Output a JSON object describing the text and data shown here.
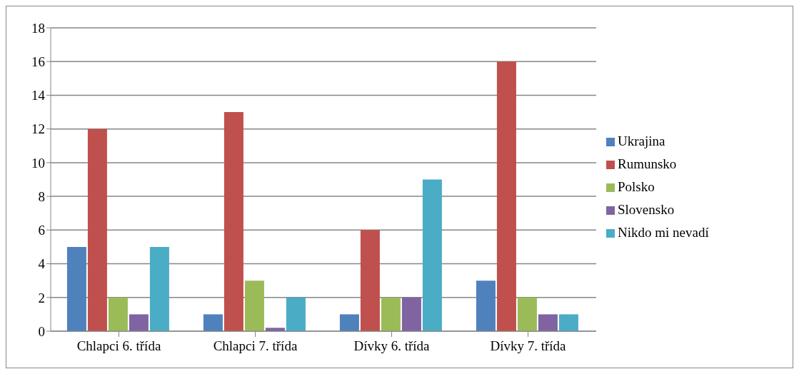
{
  "chart_data": {
    "type": "bar",
    "categories": [
      "Chlapci 6. třída",
      "Chlapci 7. třída",
      "Dívky 6. třída",
      "Dívky 7. třída"
    ],
    "series": [
      {
        "name": "Ukrajina",
        "color": "#4f81bd",
        "values": [
          5,
          1,
          1,
          3
        ]
      },
      {
        "name": "Rumunsko",
        "color": "#c0504d",
        "values": [
          12,
          13,
          6,
          16
        ]
      },
      {
        "name": "Polsko",
        "color": "#9bbb59",
        "values": [
          2,
          3,
          2,
          2
        ]
      },
      {
        "name": "Slovensko",
        "color": "#8064a2",
        "values": [
          1,
          0.2,
          2,
          1
        ]
      },
      {
        "name": "Nikdo mi nevadí",
        "color": "#4bacc6",
        "values": [
          5,
          2,
          9,
          1
        ]
      }
    ],
    "ylim": [
      0,
      18
    ],
    "yticks": [
      0,
      2,
      4,
      6,
      8,
      10,
      12,
      14,
      16,
      18
    ],
    "grid": "y",
    "legend": "right"
  }
}
